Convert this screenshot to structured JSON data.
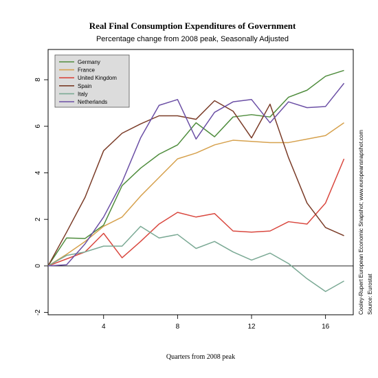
{
  "chart_data": {
    "type": "line",
    "title": "Real Final Consumption Expenditures of Government",
    "subtitle": "Percentage change from 2008 peak, Seasonally Adjusted",
    "xlabel": "Quarters from 2008 peak",
    "ylabel": "",
    "xlim": [
      1,
      17.5
    ],
    "ylim": [
      -2.1,
      9.3
    ],
    "x_ticks": [
      4,
      8,
      12,
      16
    ],
    "y_ticks": [
      -2,
      0,
      2,
      4,
      6,
      8
    ],
    "x_tick_labels": [
      "4",
      "8",
      "12",
      "16"
    ],
    "y_tick_labels": [
      "-2",
      "0",
      "2",
      "4",
      "6",
      "8"
    ],
    "reference_line_y": 0,
    "grid": false,
    "legend_position": "top-left",
    "x": [
      1,
      2,
      3,
      4,
      5,
      6,
      7,
      8,
      9,
      10,
      11,
      12,
      13,
      14,
      15,
      16,
      17
    ],
    "series": [
      {
        "name": "Germany",
        "color": "#4e8c3c",
        "values": [
          0,
          1.2,
          1.18,
          1.75,
          3.45,
          4.2,
          4.8,
          5.2,
          6.15,
          5.55,
          6.4,
          6.5,
          6.4,
          7.25,
          7.55,
          8.15,
          8.4
        ]
      },
      {
        "name": "France",
        "color": "#d6a14d",
        "values": [
          0,
          0.5,
          1.05,
          1.7,
          2.1,
          3.0,
          3.8,
          4.6,
          4.85,
          5.2,
          5.4,
          5.35,
          5.3,
          5.3,
          5.45,
          5.6,
          6.15
        ]
      },
      {
        "name": "United Kingdom",
        "color": "#d9473e",
        "values": [
          0,
          0.3,
          0.6,
          1.4,
          0.35,
          1.05,
          1.8,
          2.3,
          2.1,
          2.25,
          1.5,
          1.45,
          1.5,
          1.9,
          1.8,
          2.7,
          4.6
        ]
      },
      {
        "name": "Spain",
        "color": "#7a3b27",
        "values": [
          0,
          1.45,
          2.95,
          4.95,
          5.7,
          6.1,
          6.45,
          6.45,
          6.3,
          7.1,
          6.65,
          5.5,
          6.95,
          4.65,
          2.7,
          1.65,
          1.3
        ]
      },
      {
        "name": "Italy",
        "color": "#7aa994",
        "values": [
          0,
          0.45,
          0.6,
          0.85,
          0.85,
          1.7,
          1.2,
          1.35,
          0.75,
          1.05,
          0.6,
          0.25,
          0.55,
          0.1,
          -0.55,
          -1.1,
          -0.65
        ]
      },
      {
        "name": "Netherlands",
        "color": "#6b4fa5",
        "values": [
          0,
          0.05,
          0.95,
          2.1,
          3.6,
          5.5,
          6.9,
          7.15,
          5.45,
          6.6,
          7.05,
          7.15,
          6.15,
          7.05,
          6.8,
          6.85,
          7.85
        ]
      }
    ]
  },
  "side_text": {
    "line1": "Cooley-Rupert European Economic Snapshot; www.europeansnapshot.com",
    "line2": "Source: Eurostat"
  }
}
